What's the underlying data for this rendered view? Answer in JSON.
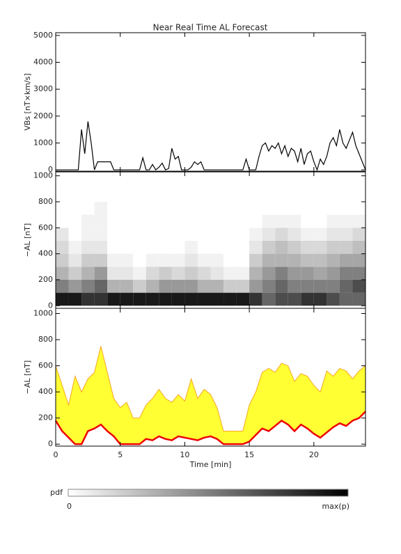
{
  "title": "Near Real Time AL Forecast",
  "chart_data": [
    {
      "type": "line",
      "ylabel": "VBs [nT×km/s]",
      "color": "#000000",
      "xlim": [
        0,
        24
      ],
      "ylim": [
        -50,
        5100
      ],
      "yticks": [
        0,
        1000,
        2000,
        3000,
        4000,
        5000
      ],
      "x": [
        0,
        0.25,
        0.5,
        0.75,
        1,
        1.25,
        1.5,
        1.75,
        2,
        2.25,
        2.5,
        2.75,
        3,
        3.25,
        3.5,
        3.75,
        4,
        4.25,
        4.5,
        4.75,
        5,
        5.25,
        5.5,
        5.75,
        6,
        6.25,
        6.5,
        6.75,
        7,
        7.25,
        7.5,
        7.75,
        8,
        8.25,
        8.5,
        8.75,
        9,
        9.25,
        9.5,
        9.75,
        10,
        10.25,
        10.5,
        10.75,
        11,
        11.25,
        11.5,
        11.75,
        12,
        12.25,
        12.5,
        12.75,
        13,
        13.25,
        13.5,
        13.75,
        14,
        14.25,
        14.5,
        14.75,
        15,
        15.25,
        15.5,
        15.75,
        16,
        16.25,
        16.5,
        16.75,
        17,
        17.25,
        17.5,
        17.75,
        18,
        18.25,
        18.5,
        18.75,
        19,
        19.25,
        19.5,
        19.75,
        20,
        20.25,
        20.5,
        20.75,
        21,
        21.25,
        21.5,
        21.75,
        22,
        22.25,
        22.5,
        22.75,
        23,
        23.25,
        23.5,
        23.75,
        24
      ],
      "values": [
        0,
        0,
        0,
        0,
        0,
        0,
        0,
        0,
        1500,
        600,
        1800,
        1000,
        0,
        300,
        300,
        300,
        300,
        300,
        0,
        0,
        0,
        0,
        0,
        0,
        0,
        0,
        0,
        450,
        0,
        0,
        200,
        0,
        100,
        250,
        0,
        50,
        800,
        400,
        500,
        0,
        0,
        0,
        100,
        300,
        200,
        300,
        0,
        0,
        0,
        0,
        0,
        0,
        0,
        0,
        0,
        0,
        0,
        0,
        0,
        400,
        0,
        0,
        0,
        500,
        900,
        1000,
        700,
        900,
        800,
        1000,
        600,
        900,
        500,
        800,
        700,
        300,
        800,
        200,
        600,
        700,
        300,
        0,
        400,
        200,
        500,
        1000,
        1200,
        900,
        1500,
        1000,
        800,
        1100,
        1400,
        900,
        600,
        300,
        0
      ]
    },
    {
      "type": "heatmap",
      "ylabel": "−AL [nT]",
      "xlim": [
        0,
        24
      ],
      "ylim": [
        -20,
        1030
      ],
      "yticks": [
        0,
        200,
        400,
        600,
        800,
        1000
      ],
      "x_bins": [
        0,
        1,
        2,
        3,
        4,
        5,
        6,
        7,
        8,
        9,
        10,
        11,
        12,
        13,
        14,
        15,
        16,
        17,
        18,
        19,
        20,
        21,
        22,
        23,
        24
      ],
      "y_bins": [
        0,
        100,
        200,
        300,
        400,
        500,
        600,
        700,
        800
      ],
      "z": [
        [
          0.9,
          0.5,
          0.3,
          0.2,
          0.15,
          0.1,
          0,
          0
        ],
        [
          0.9,
          0.4,
          0.2,
          0.1,
          0.05,
          0,
          0,
          0
        ],
        [
          0.8,
          0.5,
          0.3,
          0.2,
          0.1,
          0.05,
          0.05,
          0
        ],
        [
          0.8,
          0.6,
          0.4,
          0.2,
          0.1,
          0.05,
          0.05,
          0.05
        ],
        [
          0.9,
          0.3,
          0.1,
          0.05,
          0,
          0,
          0,
          0
        ],
        [
          0.9,
          0.3,
          0.1,
          0.05,
          0,
          0,
          0,
          0
        ],
        [
          0.9,
          0.2,
          0.05,
          0,
          0,
          0,
          0,
          0
        ],
        [
          0.9,
          0.3,
          0.15,
          0.05,
          0,
          0,
          0,
          0
        ],
        [
          0.9,
          0.4,
          0.2,
          0.05,
          0,
          0,
          0,
          0
        ],
        [
          0.9,
          0.4,
          0.15,
          0.05,
          0,
          0,
          0,
          0
        ],
        [
          0.9,
          0.4,
          0.2,
          0.1,
          0.05,
          0,
          0,
          0
        ],
        [
          0.9,
          0.3,
          0.15,
          0.05,
          0,
          0,
          0,
          0
        ],
        [
          0.9,
          0.3,
          0.1,
          0.05,
          0,
          0,
          0,
          0
        ],
        [
          0.9,
          0.2,
          0.05,
          0,
          0,
          0,
          0,
          0
        ],
        [
          0.9,
          0.2,
          0.05,
          0,
          0,
          0,
          0,
          0
        ],
        [
          0.8,
          0.4,
          0.3,
          0.2,
          0.1,
          0.05,
          0,
          0
        ],
        [
          0.6,
          0.5,
          0.4,
          0.3,
          0.2,
          0.1,
          0.05,
          0
        ],
        [
          0.7,
          0.6,
          0.5,
          0.3,
          0.25,
          0.15,
          0.05,
          0
        ],
        [
          0.7,
          0.5,
          0.4,
          0.3,
          0.2,
          0.1,
          0.05,
          0
        ],
        [
          0.8,
          0.5,
          0.4,
          0.25,
          0.15,
          0.05,
          0,
          0
        ],
        [
          0.8,
          0.5,
          0.35,
          0.25,
          0.15,
          0.05,
          0,
          0
        ],
        [
          0.7,
          0.5,
          0.4,
          0.3,
          0.2,
          0.1,
          0.05,
          0
        ],
        [
          0.6,
          0.6,
          0.5,
          0.35,
          0.2,
          0.1,
          0.05,
          0
        ],
        [
          0.6,
          0.7,
          0.5,
          0.35,
          0.25,
          0.15,
          0.05,
          0
        ]
      ]
    },
    {
      "type": "band",
      "ylabel": "−AL [nT]",
      "xlabel": "Time [min]",
      "xlim": [
        0,
        24
      ],
      "xticks": [
        0,
        5,
        10,
        15,
        20
      ],
      "ylim": [
        -15,
        1040
      ],
      "yticks": [
        0,
        200,
        400,
        600,
        800,
        1000
      ],
      "fill_color": "#ffff33",
      "upper_color": "#f5a623",
      "lower_color": "#ee0000",
      "x": [
        0,
        0.5,
        1,
        1.5,
        2,
        2.5,
        3,
        3.5,
        4,
        4.5,
        5,
        5.5,
        6,
        6.5,
        7,
        7.5,
        8,
        8.5,
        9,
        9.5,
        10,
        10.5,
        11,
        11.5,
        12,
        12.5,
        13,
        13.5,
        14,
        14.5,
        15,
        15.5,
        16,
        16.5,
        17,
        17.5,
        18,
        18.5,
        19,
        19.5,
        20,
        20.5,
        21,
        21.5,
        22,
        22.5,
        23,
        23.5,
        24
      ],
      "lower": [
        180,
        100,
        50,
        0,
        0,
        100,
        120,
        150,
        100,
        60,
        0,
        0,
        0,
        0,
        40,
        30,
        60,
        40,
        30,
        60,
        50,
        40,
        30,
        50,
        60,
        40,
        0,
        0,
        0,
        0,
        20,
        70,
        120,
        100,
        140,
        180,
        150,
        100,
        150,
        120,
        80,
        50,
        90,
        130,
        160,
        140,
        180,
        200,
        250
      ],
      "upper": [
        600,
        450,
        300,
        520,
        400,
        500,
        550,
        750,
        550,
        350,
        280,
        320,
        200,
        200,
        300,
        350,
        420,
        350,
        320,
        380,
        330,
        500,
        350,
        420,
        380,
        280,
        100,
        100,
        100,
        100,
        300,
        400,
        550,
        580,
        550,
        620,
        600,
        480,
        540,
        520,
        450,
        400,
        560,
        520,
        580,
        560,
        500,
        560,
        600
      ]
    }
  ],
  "colorbar": {
    "label": "pdf",
    "min_label": "0",
    "max_label": "max(p)"
  }
}
